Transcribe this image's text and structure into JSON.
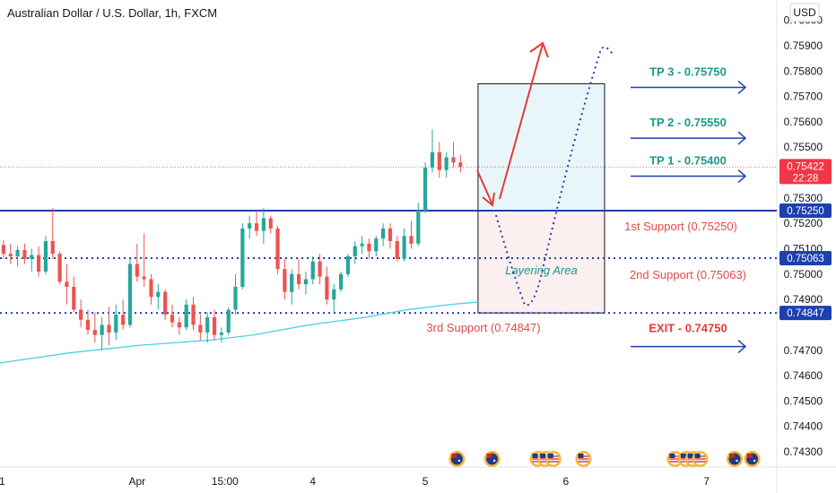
{
  "chart_data": {
    "type": "candlestick",
    "title": "Australian Dollar / U.S. Dollar, 1h, FXCM",
    "currency": "USD",
    "y_ticks": [
      "0.76000",
      "0.75900",
      "0.75800",
      "0.75700",
      "0.75600",
      "0.75500",
      "0.75300",
      "0.75200",
      "0.75100",
      "0.75000",
      "0.74900",
      "0.74700",
      "0.74600",
      "0.74500",
      "0.74400",
      "0.74300"
    ],
    "ylim": [
      0.7424,
      0.7608
    ],
    "x_ticks": [
      {
        "label": "1",
        "at": 0.3
      },
      {
        "label": "Apr",
        "at": 19.5
      },
      {
        "label": "15:00",
        "at": 32
      },
      {
        "label": "4",
        "at": 44.5
      },
      {
        "label": "5",
        "at": 60.5
      },
      {
        "label": "6",
        "at": 80.5
      },
      {
        "label": "7",
        "at": 100.5
      }
    ],
    "x_range": [
      0,
      110.5
    ],
    "last_candle_index": 65,
    "candles": [
      [
        0.75115,
        0.75135,
        0.7506,
        0.7508
      ],
      [
        0.7508,
        0.7512,
        0.7504,
        0.7507
      ],
      [
        0.7507,
        0.7511,
        0.7503,
        0.75095
      ],
      [
        0.75095,
        0.7512,
        0.7504,
        0.7506
      ],
      [
        0.7506,
        0.751,
        0.7501,
        0.75075
      ],
      [
        0.75075,
        0.7511,
        0.7499,
        0.7501
      ],
      [
        0.7501,
        0.7515,
        0.75,
        0.7513
      ],
      [
        0.7513,
        0.7526,
        0.7506,
        0.7508
      ],
      [
        0.7508,
        0.7509,
        0.7496,
        0.7497
      ],
      [
        0.7497,
        0.7504,
        0.7488,
        0.7495
      ],
      [
        0.7495,
        0.7499,
        0.7485,
        0.7486
      ],
      [
        0.7486,
        0.749,
        0.7479,
        0.7482
      ],
      [
        0.7482,
        0.7486,
        0.7476,
        0.7478
      ],
      [
        0.7478,
        0.7485,
        0.7473,
        0.7476
      ],
      [
        0.7476,
        0.7483,
        0.747,
        0.748
      ],
      [
        0.748,
        0.7487,
        0.7472,
        0.7477
      ],
      [
        0.7477,
        0.7488,
        0.7474,
        0.7484
      ],
      [
        0.7484,
        0.749,
        0.7478,
        0.748
      ],
      [
        0.748,
        0.7506,
        0.7479,
        0.7504
      ],
      [
        0.7504,
        0.7512,
        0.7497,
        0.7499
      ],
      [
        0.7499,
        0.7516,
        0.7495,
        0.7498
      ],
      [
        0.7498,
        0.75,
        0.7488,
        0.7491
      ],
      [
        0.7491,
        0.7496,
        0.7486,
        0.7493
      ],
      [
        0.7493,
        0.7494,
        0.7482,
        0.7484
      ],
      [
        0.7484,
        0.7488,
        0.7479,
        0.7481
      ],
      [
        0.7481,
        0.7483,
        0.7476,
        0.7479
      ],
      [
        0.7479,
        0.749,
        0.7478,
        0.7488
      ],
      [
        0.7488,
        0.7491,
        0.7478,
        0.748
      ],
      [
        0.748,
        0.7484,
        0.7474,
        0.7477
      ],
      [
        0.7477,
        0.7485,
        0.7473,
        0.7483
      ],
      [
        0.7483,
        0.7486,
        0.7474,
        0.7476
      ],
      [
        0.7476,
        0.7479,
        0.7473,
        0.7477
      ],
      [
        0.7477,
        0.7487,
        0.7476,
        0.7486
      ],
      [
        0.7486,
        0.75,
        0.7484,
        0.7495
      ],
      [
        0.7495,
        0.752,
        0.7494,
        0.7518
      ],
      [
        0.7518,
        0.7523,
        0.7514,
        0.752
      ],
      [
        0.752,
        0.7525,
        0.7515,
        0.7517
      ],
      [
        0.7517,
        0.7526,
        0.7512,
        0.7522
      ],
      [
        0.7522,
        0.7523,
        0.7516,
        0.7518
      ],
      [
        0.7518,
        0.7519,
        0.75,
        0.7502
      ],
      [
        0.7502,
        0.7506,
        0.749,
        0.7493
      ],
      [
        0.7493,
        0.7502,
        0.7488,
        0.75
      ],
      [
        0.75,
        0.7506,
        0.7494,
        0.7496
      ],
      [
        0.7496,
        0.7501,
        0.7492,
        0.7498
      ],
      [
        0.7498,
        0.7507,
        0.7496,
        0.7505
      ],
      [
        0.7505,
        0.7508,
        0.7496,
        0.7499
      ],
      [
        0.7499,
        0.7503,
        0.7488,
        0.749
      ],
      [
        0.749,
        0.7496,
        0.7485,
        0.7494
      ],
      [
        0.7494,
        0.7501,
        0.7493,
        0.75
      ],
      [
        0.75,
        0.7508,
        0.7499,
        0.7507
      ],
      [
        0.7507,
        0.7513,
        0.7504,
        0.7511
      ],
      [
        0.7511,
        0.7515,
        0.7508,
        0.7512
      ],
      [
        0.7512,
        0.7514,
        0.7506,
        0.7509
      ],
      [
        0.7509,
        0.7515,
        0.7507,
        0.7514
      ],
      [
        0.7514,
        0.752,
        0.7511,
        0.7518
      ],
      [
        0.7518,
        0.752,
        0.751,
        0.7513
      ],
      [
        0.7513,
        0.7515,
        0.7505,
        0.7506
      ],
      [
        0.7506,
        0.7518,
        0.7505,
        0.7515
      ],
      [
        0.7515,
        0.7521,
        0.751,
        0.7512
      ],
      [
        0.7512,
        0.7528,
        0.7511,
        0.7525
      ],
      [
        0.7525,
        0.7544,
        0.7524,
        0.7542
      ],
      [
        0.7542,
        0.7557,
        0.754,
        0.7548
      ],
      [
        0.7548,
        0.7552,
        0.7538,
        0.7541
      ],
      [
        0.7541,
        0.7548,
        0.7538,
        0.7546
      ],
      [
        0.7546,
        0.7552,
        0.7542,
        0.7544
      ],
      [
        0.7544,
        0.7547,
        0.754,
        0.75422
      ]
    ],
    "moving_average": {
      "color": "#4dd0e1",
      "points": [
        [
          0,
          0.7465
        ],
        [
          10,
          0.7469
        ],
        [
          20,
          0.7472
        ],
        [
          30,
          0.7474
        ],
        [
          36,
          0.7476
        ],
        [
          44,
          0.748
        ],
        [
          52,
          0.7483
        ],
        [
          58,
          0.7486
        ],
        [
          64,
          0.7488
        ],
        [
          68,
          0.7489
        ]
      ]
    },
    "levels": [
      {
        "value": 0.7525,
        "label": "0.75250",
        "style": "solid",
        "annotation": "1st Support (0.75250)"
      },
      {
        "value": 0.75063,
        "label": "0.75063",
        "style": "dotted",
        "annotation": "2nd Support (0.75063)"
      },
      {
        "value": 0.74847,
        "label": "0.74847",
        "style": "dotted",
        "annotation": "3rd Support (0.74847)"
      }
    ],
    "current_price": {
      "value": 0.75422,
      "label": "0.75422",
      "countdown": "22:28",
      "color": "#f23645"
    },
    "targets": [
      {
        "label": "TP 3 - 0.75750",
        "value": 0.7575
      },
      {
        "label": "TP 2 - 0.75550",
        "value": 0.7555
      },
      {
        "label": "TP 1 - 0.75400",
        "value": 0.754
      }
    ],
    "exit": {
      "label": "EXIT - 0.74750",
      "value": 0.7475
    },
    "position_box": {
      "x_from": 68,
      "x_to": 86,
      "top": 0.7575,
      "entry": 0.7525,
      "bottom": 0.74847
    },
    "layering_label": "Layering Area",
    "colors": {
      "up": "#26a69a",
      "down": "#ef5350",
      "level": "#1e40af",
      "tp_text": "#1a9a8a",
      "support_text": "#e34a4a",
      "arrow_red": "#e53935",
      "arrow_blue": "#1e40af",
      "profit_fill": "#e8f6fc",
      "loss_fill": "#fcefef"
    },
    "event_icons": [
      {
        "x": 65,
        "kind": "AU"
      },
      {
        "x": 70,
        "kind": "AU"
      },
      {
        "x": 76.5,
        "kind": "US"
      },
      {
        "x": 77.6,
        "kind": "US"
      },
      {
        "x": 78.7,
        "kind": "US"
      },
      {
        "x": 83,
        "kind": "US"
      },
      {
        "x": 96,
        "kind": "US"
      },
      {
        "x": 97.6,
        "kind": "US"
      },
      {
        "x": 98.6,
        "kind": "US"
      },
      {
        "x": 99.6,
        "kind": "US"
      },
      {
        "x": 104.5,
        "kind": "AU"
      },
      {
        "x": 107,
        "kind": "AU"
      }
    ]
  }
}
